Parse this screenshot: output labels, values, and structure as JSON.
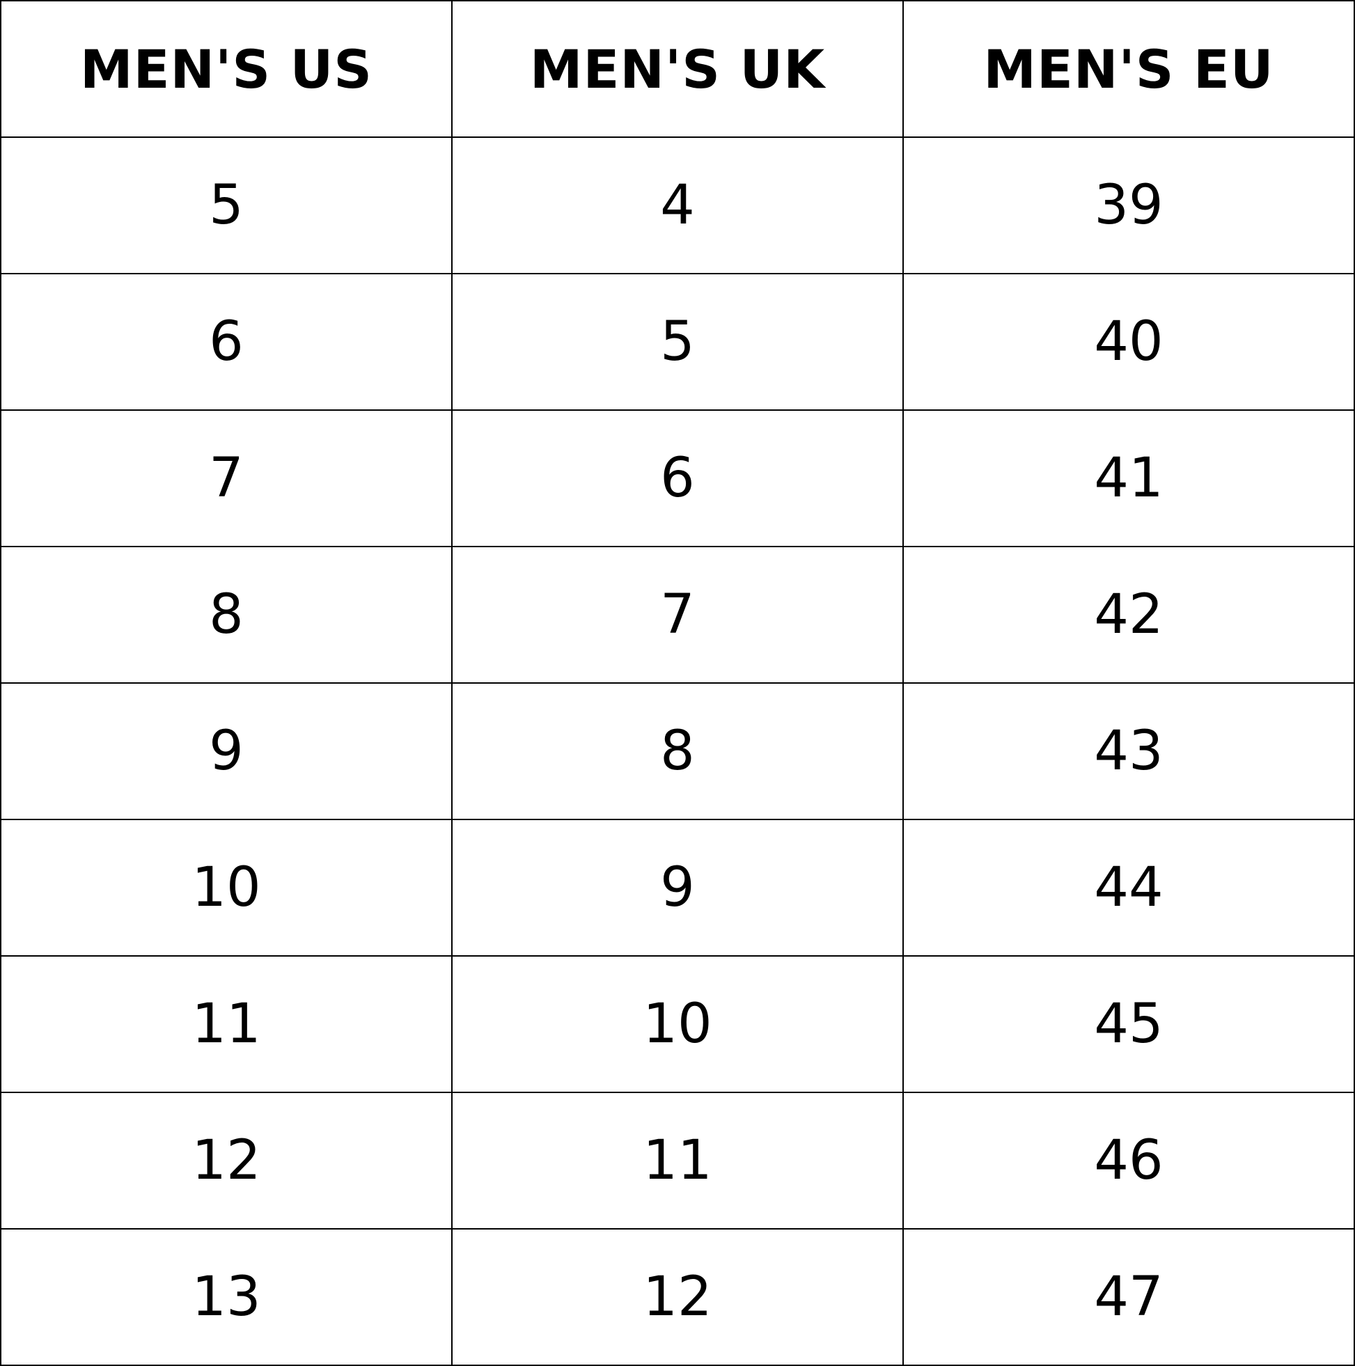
{
  "table": {
    "header": [
      "MEN'S US",
      "MEN'S UK",
      "MEN'S EU"
    ],
    "rows": [
      [
        5,
        4,
        39
      ],
      [
        6,
        5,
        40
      ],
      [
        7,
        6,
        41
      ],
      [
        8,
        7,
        42
      ],
      [
        9,
        8,
        43
      ],
      [
        10,
        9,
        44
      ],
      [
        11,
        10,
        45
      ],
      [
        12,
        11,
        46
      ],
      [
        13,
        12,
        47
      ]
    ]
  }
}
